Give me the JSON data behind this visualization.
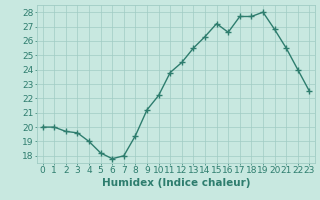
{
  "x": [
    0,
    1,
    2,
    3,
    4,
    5,
    6,
    7,
    8,
    9,
    10,
    11,
    12,
    13,
    14,
    15,
    16,
    17,
    18,
    19,
    20,
    21,
    22,
    23
  ],
  "y": [
    20.0,
    20.0,
    19.7,
    19.6,
    19.0,
    18.2,
    17.8,
    18.0,
    19.4,
    21.2,
    22.2,
    23.8,
    24.5,
    25.5,
    26.3,
    27.2,
    26.6,
    27.7,
    27.7,
    28.0,
    26.8,
    25.5,
    24.0,
    22.5
  ],
  "xlabel": "Humidex (Indice chaleur)",
  "ylim": [
    17.5,
    28.5
  ],
  "xlim": [
    -0.5,
    23.5
  ],
  "yticks": [
    18,
    19,
    20,
    21,
    22,
    23,
    24,
    25,
    26,
    27,
    28
  ],
  "xticks": [
    0,
    1,
    2,
    3,
    4,
    5,
    6,
    7,
    8,
    9,
    10,
    11,
    12,
    13,
    14,
    15,
    16,
    17,
    18,
    19,
    20,
    21,
    22,
    23
  ],
  "line_color": "#2e7d6e",
  "marker_color": "#2e7d6e",
  "bg_color": "#c8e8e0",
  "grid_color": "#a0ccc4",
  "text_color": "#2e7d6e",
  "xlabel_fontsize": 7.5,
  "tick_fontsize": 6.5
}
